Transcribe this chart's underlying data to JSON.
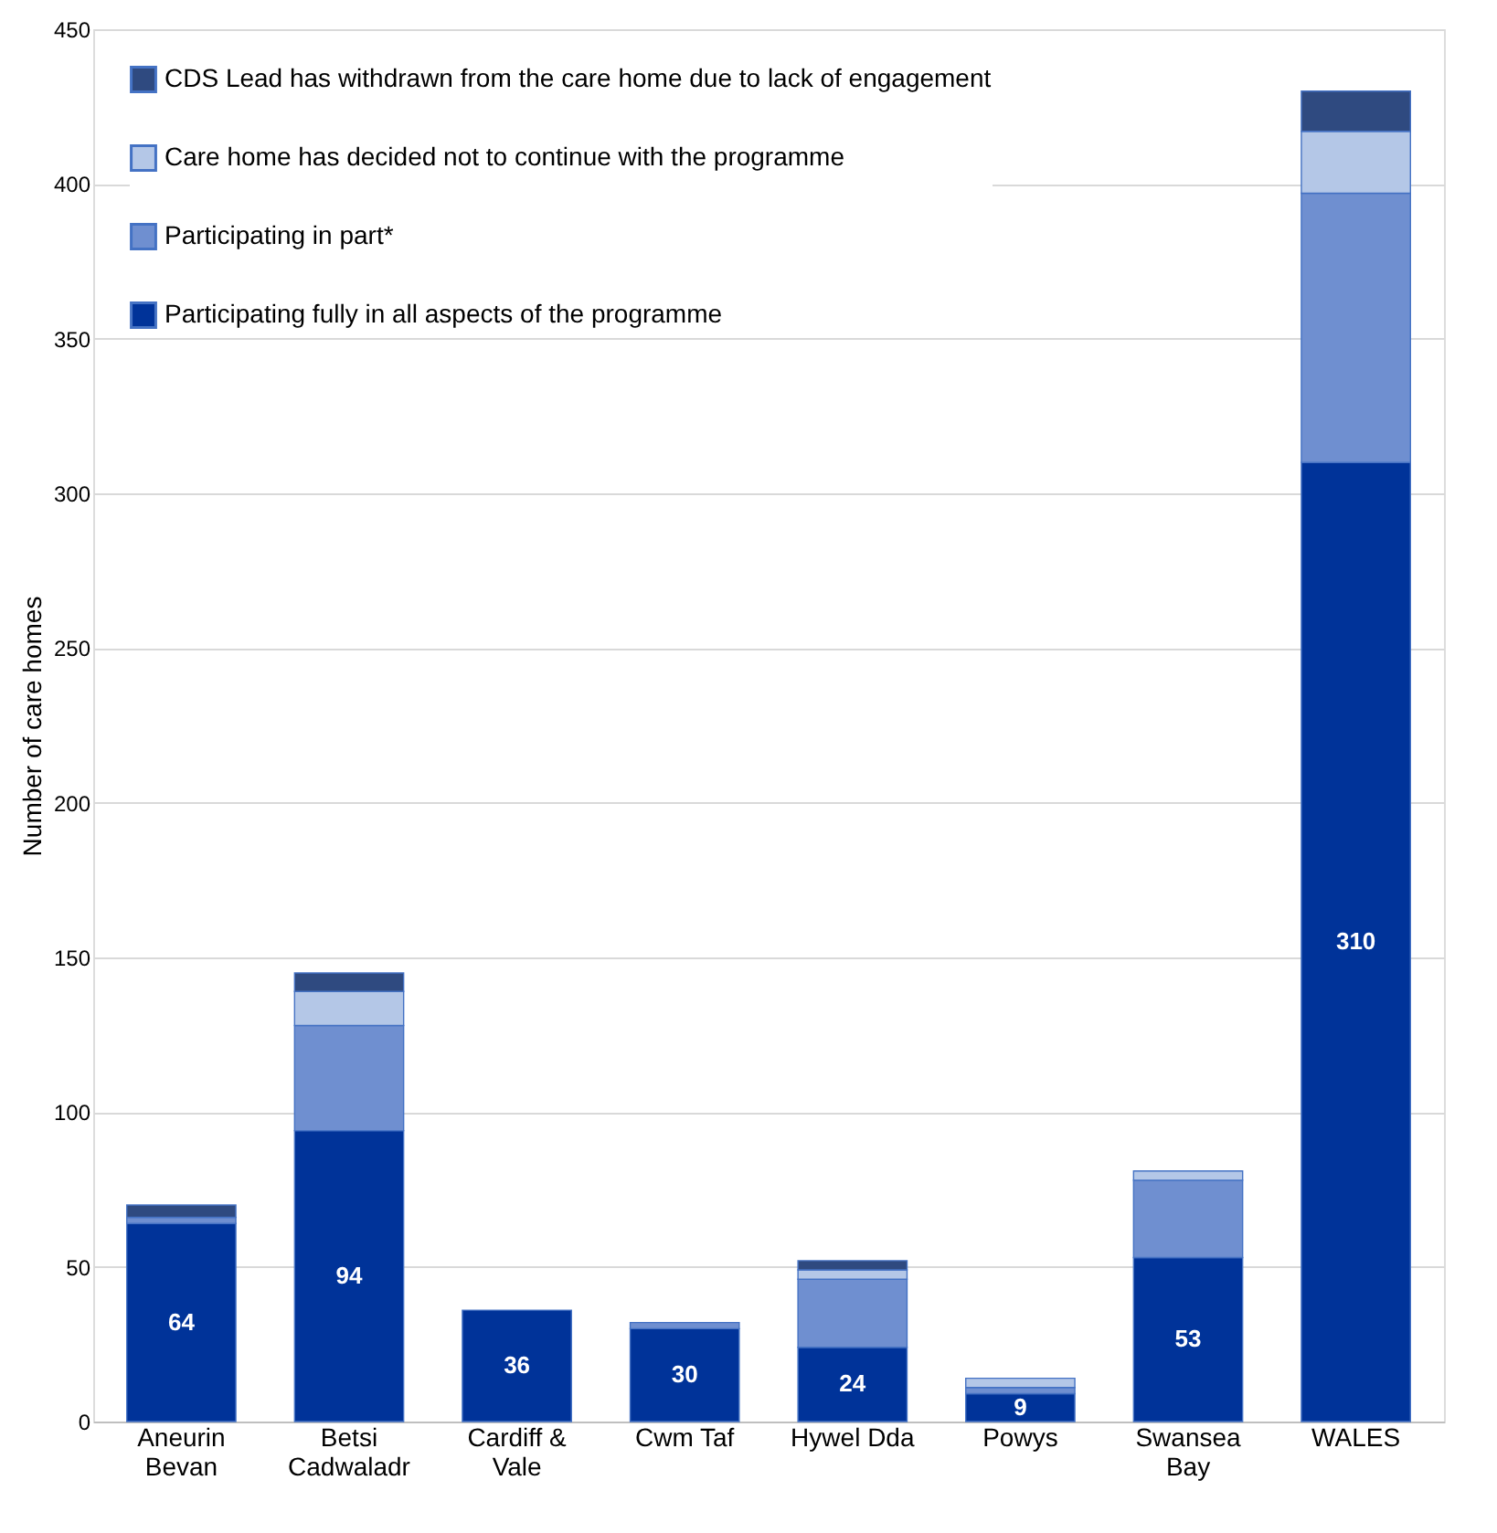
{
  "chart_data": {
    "type": "bar",
    "stacked": true,
    "ylabel": "Number of care homes",
    "categories": [
      "Aneurin Bevan",
      "Betsi Cadwaladr",
      "Cardiff & Vale",
      "Cwm Taf",
      "Hywel Dda",
      "Powys",
      "Swansea Bay",
      "WALES"
    ],
    "series": [
      {
        "name": "Participating fully in all aspects of the programme",
        "color": "#003399",
        "values": [
          64,
          94,
          36,
          30,
          24,
          9,
          53,
          310
        ],
        "value_labels": [
          "64",
          "94",
          "36",
          "30",
          "24",
          "9",
          "53",
          "310"
        ]
      },
      {
        "name": "Participating in part*",
        "color": "#6f8fd0",
        "values": [
          2,
          34,
          null,
          2,
          22,
          2,
          25,
          87
        ]
      },
      {
        "name": "Care home has decided not to continue with the programme",
        "color": "#b4c7e7",
        "values": [
          null,
          11,
          null,
          null,
          3,
          3,
          3,
          20
        ]
      },
      {
        "name": "CDS Lead has withdrawn from the care home due to lack of engagement",
        "color": "#2f4a80",
        "values": [
          4,
          6,
          null,
          null,
          3,
          null,
          null,
          13
        ]
      }
    ],
    "ylim": [
      0,
      450
    ],
    "yticks": [
      0,
      50,
      100,
      150,
      200,
      250,
      300,
      350,
      400,
      450
    ],
    "grid": "y",
    "legend": "top left"
  }
}
